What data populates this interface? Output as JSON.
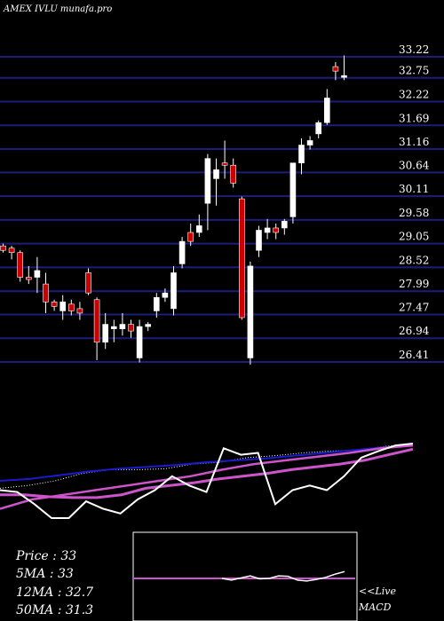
{
  "chart_data": [
    {
      "type": "candlestick",
      "title": "AMEX  IVLU munafa.pro",
      "yticks": [
        33.22,
        32.75,
        32.22,
        31.69,
        31.16,
        30.64,
        30.11,
        29.58,
        29.05,
        28.52,
        27.99,
        27.47,
        26.94,
        26.41
      ],
      "ylim": [
        26.41,
        33.22
      ],
      "grid": true,
      "candles": [
        {
          "o": 29.0,
          "h": 29.05,
          "l": 28.85,
          "c": 28.9
        },
        {
          "o": 28.95,
          "h": 29.0,
          "l": 28.7,
          "c": 28.85
        },
        {
          "o": 28.85,
          "h": 28.9,
          "l": 28.2,
          "c": 28.3
        },
        {
          "o": 28.3,
          "h": 28.55,
          "l": 28.15,
          "c": 28.25
        },
        {
          "o": 28.3,
          "h": 28.75,
          "l": 27.95,
          "c": 28.45
        },
        {
          "o": 28.15,
          "h": 28.4,
          "l": 27.5,
          "c": 27.75
        },
        {
          "o": 27.75,
          "h": 27.8,
          "l": 27.55,
          "c": 27.65
        },
        {
          "o": 27.55,
          "h": 27.9,
          "l": 27.35,
          "c": 27.75
        },
        {
          "o": 27.7,
          "h": 27.8,
          "l": 27.45,
          "c": 27.55
        },
        {
          "o": 27.6,
          "h": 27.75,
          "l": 27.35,
          "c": 27.5
        },
        {
          "o": 28.4,
          "h": 28.5,
          "l": 27.9,
          "c": 27.95
        },
        {
          "o": 27.8,
          "h": 27.85,
          "l": 26.45,
          "c": 26.85
        },
        {
          "o": 26.85,
          "h": 27.5,
          "l": 26.7,
          "c": 27.25
        },
        {
          "o": 27.15,
          "h": 27.35,
          "l": 26.85,
          "c": 27.2
        },
        {
          "o": 27.15,
          "h": 27.5,
          "l": 27.0,
          "c": 27.25
        },
        {
          "o": 27.25,
          "h": 27.35,
          "l": 26.95,
          "c": 27.1
        },
        {
          "o": 26.5,
          "h": 27.35,
          "l": 26.4,
          "c": 27.2
        },
        {
          "o": 27.2,
          "h": 27.3,
          "l": 27.1,
          "c": 27.25
        },
        {
          "o": 27.55,
          "h": 27.95,
          "l": 27.4,
          "c": 27.85
        },
        {
          "o": 27.85,
          "h": 28.05,
          "l": 27.75,
          "c": 27.95
        },
        {
          "o": 27.6,
          "h": 28.55,
          "l": 27.45,
          "c": 28.4
        },
        {
          "o": 28.6,
          "h": 29.2,
          "l": 28.5,
          "c": 29.1
        },
        {
          "o": 29.3,
          "h": 29.5,
          "l": 29.0,
          "c": 29.1
        },
        {
          "o": 29.3,
          "h": 29.7,
          "l": 29.2,
          "c": 29.45
        },
        {
          "o": 29.95,
          "h": 31.05,
          "l": 29.35,
          "c": 30.95
        },
        {
          "o": 30.5,
          "h": 30.95,
          "l": 29.9,
          "c": 30.7
        },
        {
          "o": 30.85,
          "h": 31.35,
          "l": 30.5,
          "c": 30.8
        },
        {
          "o": 30.8,
          "h": 30.95,
          "l": 30.3,
          "c": 30.4
        },
        {
          "o": 30.05,
          "h": 30.1,
          "l": 27.35,
          "c": 27.4
        },
        {
          "o": 26.5,
          "h": 28.65,
          "l": 26.35,
          "c": 28.55
        },
        {
          "o": 28.9,
          "h": 29.45,
          "l": 28.75,
          "c": 29.35
        },
        {
          "o": 29.3,
          "h": 29.6,
          "l": 29.15,
          "c": 29.4
        },
        {
          "o": 29.4,
          "h": 29.5,
          "l": 29.15,
          "c": 29.3
        },
        {
          "o": 29.4,
          "h": 29.6,
          "l": 29.25,
          "c": 29.55
        },
        {
          "o": 29.65,
          "h": 30.85,
          "l": 29.5,
          "c": 30.85
        },
        {
          "o": 30.85,
          "h": 31.4,
          "l": 30.6,
          "c": 31.25
        },
        {
          "o": 31.25,
          "h": 31.45,
          "l": 31.15,
          "c": 31.35
        },
        {
          "o": 31.5,
          "h": 31.8,
          "l": 31.4,
          "c": 31.75
        },
        {
          "o": 31.75,
          "h": 32.5,
          "l": 31.7,
          "c": 32.3
        },
        {
          "o": 33.0,
          "h": 33.1,
          "l": 32.7,
          "c": 32.9
        },
        {
          "o": 32.8,
          "h": 33.25,
          "l": 32.7,
          "c": 32.8
        }
      ]
    },
    {
      "type": "line",
      "series": [
        {
          "values": [
            0.52,
            0.55,
            0.6,
            0.68,
            0.72,
            0.72,
            0.73,
            0.78,
            0.8,
            0.85,
            0.87,
            0.9,
            0.92,
            0.93,
            0.97,
            1.0
          ]
        },
        {
          "values": [
            0.6,
            0.62,
            0.66,
            0.7,
            0.73,
            0.75,
            0.77,
            0.8,
            0.82,
            0.84,
            0.87,
            0.9,
            0.93,
            0.96,
            0.98
          ]
        },
        {
          "values": [
            0.3,
            0.4,
            0.45,
            0.5,
            0.55,
            0.6,
            0.65,
            0.72,
            0.78,
            0.82,
            0.86,
            0.9,
            0.95,
            0.98
          ]
        },
        {
          "values": [
            0.45,
            0.45,
            0.43,
            0.42,
            0.42,
            0.45,
            0.52,
            0.55,
            0.58,
            0.62,
            0.65,
            0.68,
            0.72,
            0.75,
            0.78,
            0.82,
            0.88,
            0.94
          ]
        },
        {
          "values": [
            0.5,
            0.48,
            0.35,
            0.2,
            0.2,
            0.38,
            0.3,
            0.25,
            0.4,
            0.5,
            0.65,
            0.55,
            0.48,
            0.95,
            0.88,
            0.9,
            0.35,
            0.5,
            0.55,
            0.5,
            0.65,
            0.85,
            0.92,
            0.98,
            1.0
          ]
        }
      ]
    },
    {
      "type": "line",
      "series": [
        {
          "values": [
            0.5,
            0.42,
            0.52,
            0.62,
            0.48,
            0.5,
            0.62,
            0.6,
            0.42,
            0.38,
            0.45,
            0.55,
            0.7,
            0.82
          ]
        },
        {
          "values": [
            0.0,
            0.0
          ]
        }
      ]
    }
  ],
  "info": {
    "price_label": "Price   : 33",
    "ma5_label": "5MA : 33",
    "ma12_label": "12MA : 32.7",
    "ma50_label": "50MA : 31.3"
  },
  "macd": {
    "live_label": "<<Live",
    "macd_label": "MACD"
  },
  "colors": {
    "background": "#000000",
    "grid": "#1e1e7a",
    "bull": "#ffffff",
    "bear": "#cc0000",
    "ma_blue": "#1a1ad0",
    "ma_magenta": "#cc55cc",
    "text": "#ffffff"
  }
}
